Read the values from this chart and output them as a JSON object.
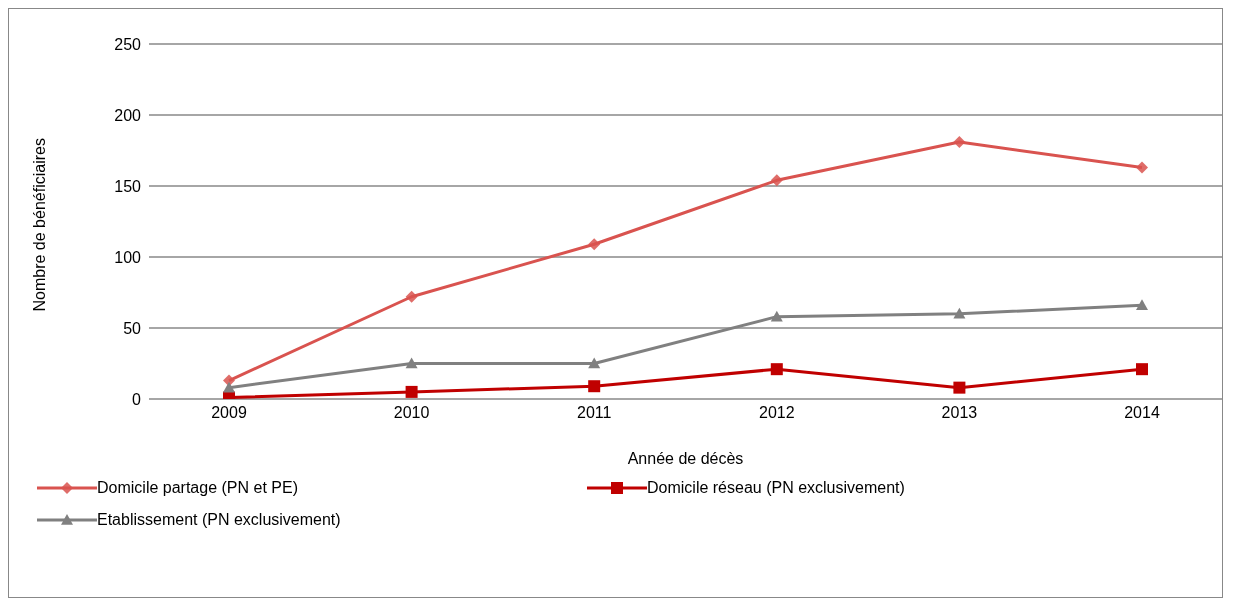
{
  "chart_data": {
    "type": "line",
    "xlabel": "Année de décès",
    "ylabel": "Nombre de bénéficiaires",
    "categories": [
      "2009",
      "2010",
      "2011",
      "2012",
      "2013",
      "2014"
    ],
    "series": [
      {
        "name": "Domicile partage (PN et PE)",
        "color": "#d9534f",
        "marker": "diamond",
        "values": [
          13,
          72,
          109,
          154,
          181,
          163
        ]
      },
      {
        "name": "Domicile réseau (PN exclusivement)",
        "color": "#c00000",
        "marker": "square",
        "values": [
          1,
          5,
          9,
          21,
          8,
          21
        ]
      },
      {
        "name": "Etablissement (PN exclusivement)",
        "color": "#808080",
        "marker": "triangle",
        "values": [
          8,
          25,
          25,
          58,
          60,
          66
        ]
      }
    ],
    "ylim": [
      0,
      250
    ],
    "yticks": [
      0,
      50,
      100,
      150,
      200,
      250
    ],
    "grid": "y",
    "legend": "bottom"
  }
}
